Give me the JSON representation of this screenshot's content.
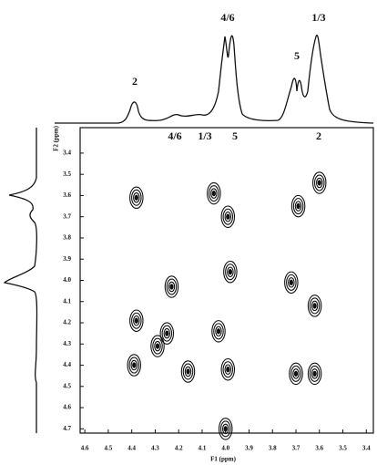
{
  "chart_data": {
    "type": "scatter",
    "x_label": "F1 (ppm)",
    "y_label": "F2 (ppm)",
    "annotations": [
      "2",
      "4/6",
      "5",
      "1/3"
    ],
    "inner_annotations": [
      "4/6",
      "1/3",
      "5",
      "2"
    ],
    "x": [
      4.05,
      3.99,
      3.69,
      3.6,
      3.98,
      4.23,
      3.72,
      3.62,
      4.38,
      4.38,
      4.39,
      4.03,
      4.25,
      4.29,
      4.16,
      3.99,
      3.7,
      3.62,
      4.0
    ],
    "y": [
      3.59,
      3.7,
      3.65,
      3.54,
      3.96,
      4.03,
      4.01,
      4.12,
      3.61,
      4.19,
      4.4,
      4.24,
      4.25,
      4.31,
      4.43,
      4.42,
      4.44,
      4.44,
      4.7
    ],
    "color": "#111111",
    "xlim": [
      4.62,
      3.37
    ],
    "ylim": [
      3.28,
      4.72
    ],
    "xticks": [
      4.6,
      4.5,
      4.4,
      4.3,
      4.2,
      4.1,
      {
        "value": 4,
        "label": "4.0"
      },
      3.9,
      3.8,
      3.7,
      3.6,
      3.5,
      3.4
    ],
    "yticks": [
      3.4,
      3.5,
      3.6,
      3.7,
      3.8,
      3.9,
      {
        "value": 4,
        "label": "4.0"
      },
      4.1,
      4.2,
      4.3,
      4.4,
      4.5,
      4.6,
      4.7
    ]
  }
}
